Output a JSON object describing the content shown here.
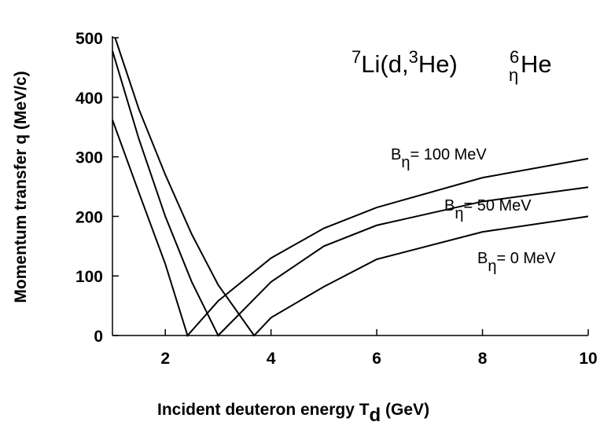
{
  "chart_data": {
    "type": "line",
    "reaction": [
      "7",
      "Li(d,",
      "3",
      "He)",
      "6",
      "η",
      "He"
    ],
    "xlabel": [
      "Incident deuteron energy T",
      "d",
      " (GeV)"
    ],
    "ylabel": "Momentum transfer q (MeV/c)",
    "xlim": [
      1,
      10
    ],
    "ylim": [
      0,
      500
    ],
    "xticks": [
      2,
      4,
      6,
      8,
      10
    ],
    "yticks": [
      0,
      100,
      200,
      300,
      400,
      500
    ],
    "color": "#000000",
    "series": [
      {
        "label": [
          "B",
          "η",
          "= 100 MeV"
        ],
        "x": [
          1,
          1.5,
          2,
          2.42,
          3,
          4,
          5,
          6,
          8,
          10
        ],
        "values": [
          362,
          240,
          120,
          0,
          58,
          130,
          180,
          215,
          265,
          297
        ]
      },
      {
        "label": [
          "B",
          "η",
          "= 50 MeV"
        ],
        "x": [
          1,
          1.5,
          2,
          2.5,
          3.0,
          3.5,
          4,
          5,
          6,
          8,
          10
        ],
        "values": [
          478,
          330,
          200,
          90,
          0,
          45,
          90,
          150,
          185,
          225,
          249
        ]
      },
      {
        "label": [
          "B",
          "η",
          "= 0 MeV"
        ],
        "x": [
          1.05,
          1.5,
          2,
          2.5,
          3,
          3.68,
          4,
          5,
          6,
          8,
          10
        ],
        "values": [
          500,
          380,
          270,
          170,
          85,
          0,
          30,
          82,
          128,
          174,
          200
        ]
      }
    ]
  }
}
